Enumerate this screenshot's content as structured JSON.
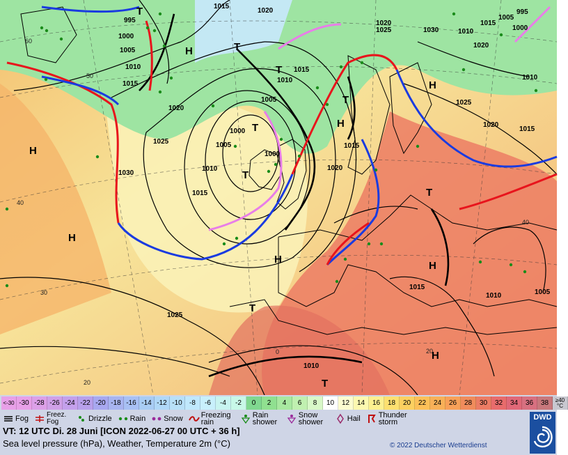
{
  "map": {
    "pressure_labels": [
      {
        "text": "1015"
      },
      {
        "text": "1020"
      },
      {
        "text": "995"
      },
      {
        "text": "1000"
      },
      {
        "text": "1005"
      },
      {
        "text": "1010"
      },
      {
        "text": "1015"
      },
      {
        "text": "1025"
      },
      {
        "text": "1020"
      },
      {
        "text": "1025"
      },
      {
        "text": "1030"
      },
      {
        "text": "1000"
      },
      {
        "text": "1005"
      },
      {
        "text": "1010"
      },
      {
        "text": "1015"
      },
      {
        "text": "1005"
      },
      {
        "text": "1000"
      },
      {
        "text": "1010"
      },
      {
        "text": "1015"
      },
      {
        "text": "1020"
      },
      {
        "text": "1015"
      },
      {
        "text": "1030"
      },
      {
        "text": "1025"
      },
      {
        "text": "1020"
      },
      {
        "text": "1015"
      },
      {
        "text": "1010"
      },
      {
        "text": "1005"
      },
      {
        "text": "1000"
      },
      {
        "text": "995"
      },
      {
        "text": "1020"
      },
      {
        "text": "1025"
      },
      {
        "text": "1020"
      },
      {
        "text": "1015"
      },
      {
        "text": "1010"
      },
      {
        "text": "1005"
      },
      {
        "text": "1010"
      },
      {
        "text": "1015"
      },
      {
        "text": "1010"
      }
    ],
    "pressure_systems": [
      {
        "type": "H"
      },
      {
        "type": "H"
      },
      {
        "type": "H"
      },
      {
        "type": "H"
      },
      {
        "type": "H"
      },
      {
        "type": "H"
      },
      {
        "type": "H"
      },
      {
        "type": "H"
      },
      {
        "type": "T"
      },
      {
        "type": "T"
      },
      {
        "type": "T"
      },
      {
        "type": "T"
      },
      {
        "type": "T"
      },
      {
        "type": "T"
      },
      {
        "type": "T"
      },
      {
        "type": "T"
      },
      {
        "type": "T"
      }
    ],
    "latitude_labels": [
      "60",
      "50",
      "40",
      "30",
      "20",
      "40",
      "20",
      "0"
    ],
    "colors": {
      "warm_front": "#e8141c",
      "cold_front": "#1a3be0",
      "occluded_front": "#e87ee8",
      "isobar": "#000000"
    }
  },
  "legend": {
    "scale": [
      {
        "label": "<-30",
        "color": "#e8a0e8"
      },
      {
        "label": "-30",
        "color": "#e8a0e8"
      },
      {
        "label": "-28",
        "color": "#dca0e8"
      },
      {
        "label": "-26",
        "color": "#d0a0e8"
      },
      {
        "label": "-24",
        "color": "#c4a0ec"
      },
      {
        "label": "-22",
        "color": "#b8a0ec"
      },
      {
        "label": "-20",
        "color": "#a8a8f0"
      },
      {
        "label": "-18",
        "color": "#a8b4f0"
      },
      {
        "label": "-16",
        "color": "#a8c0f4"
      },
      {
        "label": "-14",
        "color": "#a8ccf4"
      },
      {
        "label": "-12",
        "color": "#b0d8f8"
      },
      {
        "label": "-10",
        "color": "#b8e0f8"
      },
      {
        "label": "-8",
        "color": "#c0e8fc"
      },
      {
        "label": "-6",
        "color": "#c8f0fc"
      },
      {
        "label": "-4",
        "color": "#c8f4f0"
      },
      {
        "label": "-2",
        "color": "#c8f8e8"
      },
      {
        "label": "0",
        "color": "#80d890"
      },
      {
        "label": "2",
        "color": "#90e090"
      },
      {
        "label": "4",
        "color": "#a8e8a0"
      },
      {
        "label": "6",
        "color": "#c0f0b0"
      },
      {
        "label": "8",
        "color": "#d8f8c8"
      },
      {
        "label": "10",
        "color": "#ffffff"
      },
      {
        "label": "12",
        "color": "#fcfcd0"
      },
      {
        "label": "14",
        "color": "#fcf8b0"
      },
      {
        "label": "16",
        "color": "#fcf090"
      },
      {
        "label": "18",
        "color": "#fce070"
      },
      {
        "label": "20",
        "color": "#fcd060"
      },
      {
        "label": "22",
        "color": "#fcc058"
      },
      {
        "label": "24",
        "color": "#f8b058"
      },
      {
        "label": "26",
        "color": "#f8a058"
      },
      {
        "label": "28",
        "color": "#f08c5c"
      },
      {
        "label": "30",
        "color": "#ec7c64"
      },
      {
        "label": "32",
        "color": "#e86c6c"
      },
      {
        "label": "34",
        "color": "#e06878"
      },
      {
        "label": "36",
        "color": "#d87080"
      },
      {
        "label": "38",
        "color": "#c8787c"
      },
      {
        "label": "≥40 °C",
        "color": "#c8c8d0"
      }
    ],
    "weather": [
      {
        "icon": "fog-icon",
        "label": "Fog"
      },
      {
        "icon": "freezing-fog-icon",
        "label": "Freez. Fog"
      },
      {
        "icon": "drizzle-icon",
        "label": "Drizzle"
      },
      {
        "icon": "rain-icon",
        "label": "Rain"
      },
      {
        "icon": "snow-icon",
        "label": "Snow"
      },
      {
        "icon": "freezing-rain-icon",
        "label": "Freezing rain"
      },
      {
        "icon": "rain-shower-icon",
        "label": "Rain shower"
      },
      {
        "icon": "snow-shower-icon",
        "label": "Snow shower"
      },
      {
        "icon": "hail-icon",
        "label": "Hail"
      },
      {
        "icon": "thunderstorm-icon",
        "label": "Thunder storm"
      }
    ],
    "valid_time": "VT: 12 UTC Di.  28 Juni [ICON 2022-06-27  00 UTC + 36 h]",
    "description": "Sea level pressure (hPa), Weather, Temperature 2m (°C)",
    "copyright": "© 2022 Deutscher Wetterdienst",
    "logo_text": "DWD"
  }
}
